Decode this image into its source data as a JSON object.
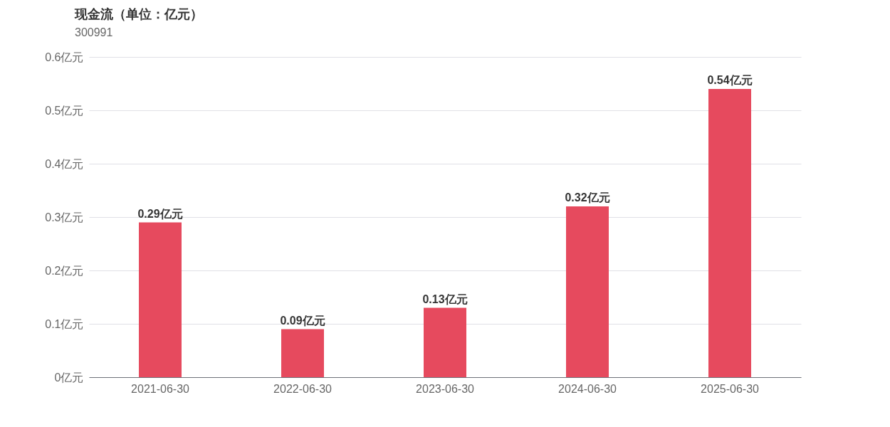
{
  "chart_data": {
    "type": "bar",
    "title": "现金流（单位：亿元）",
    "subtitle": "300991",
    "categories": [
      "2021-06-30",
      "2022-06-30",
      "2023-06-30",
      "2024-06-30",
      "2025-06-30"
    ],
    "values": [
      0.29,
      0.09,
      0.13,
      0.32,
      0.54
    ],
    "value_labels": [
      "0.29亿元",
      "0.09亿元",
      "0.13亿元",
      "0.32亿元",
      "0.54亿元"
    ],
    "color": "#e64a5e",
    "ylim": [
      0,
      0.6
    ],
    "yticks": [
      {
        "value": 0,
        "label": "0亿元"
      },
      {
        "value": 0.1,
        "label": "0.1亿元"
      },
      {
        "value": 0.2,
        "label": "0.2亿元"
      },
      {
        "value": 0.3,
        "label": "0.3亿元"
      },
      {
        "value": 0.4,
        "label": "0.4亿元"
      },
      {
        "value": 0.5,
        "label": "0.5亿元"
      },
      {
        "value": 0.6,
        "label": "0.6亿元"
      }
    ],
    "grid": true
  }
}
